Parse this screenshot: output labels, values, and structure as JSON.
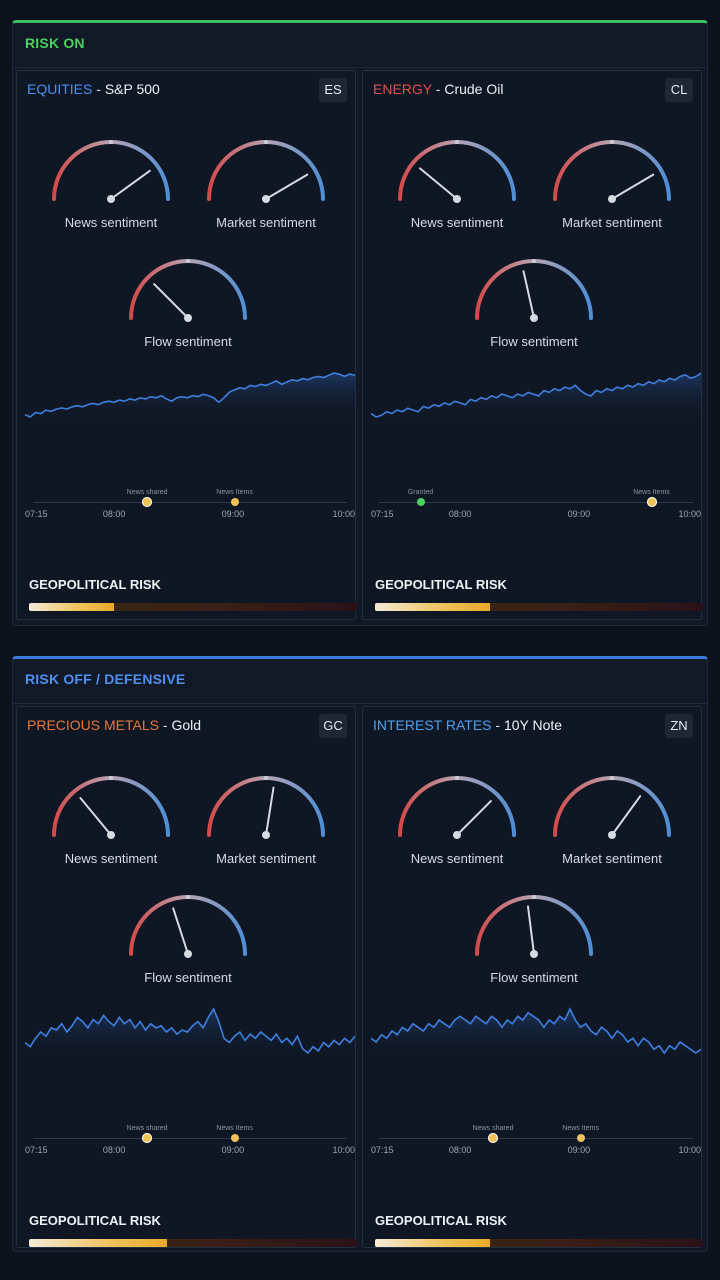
{
  "sections": [
    {
      "title": "RISK ON",
      "cards": [
        {
          "category": "EQUITIES",
          "category_color": "#4f8ff0",
          "asset": "S&P 500",
          "ticker": "ES",
          "gauges": [
            {
              "label": "News sentiment",
              "value": 0.8
            },
            {
              "label": "Market sentiment",
              "value": 0.83
            },
            {
              "label": "Flow sentiment",
              "value": 0.25
            }
          ],
          "series": [
            40,
            38,
            42,
            41,
            44,
            43,
            45,
            46,
            45,
            47,
            48,
            47,
            49,
            50,
            49,
            51,
            52,
            51,
            53,
            52,
            54,
            53,
            55,
            54,
            56,
            55,
            57,
            54,
            52,
            55,
            56,
            55,
            57,
            56,
            58,
            57,
            55,
            51,
            55,
            60,
            62,
            64,
            63,
            66,
            65,
            67,
            66,
            68,
            70,
            67,
            69,
            71,
            70,
            72,
            71,
            73,
            74,
            73,
            75,
            77,
            76,
            74,
            76,
            75
          ],
          "times": [
            "07:15",
            "08:00",
            "09:00",
            "10:00"
          ],
          "events": [
            {
              "label": "News shared",
              "pos": 0.37,
              "color": "#f0c25a",
              "big": true
            },
            {
              "label": "News Items",
              "pos": 0.635,
              "color": "#f0c25a",
              "big": false
            }
          ],
          "geo_label": "GEOPOLITICAL RISK",
          "geo_level": 0.26
        },
        {
          "category": "ENERGY",
          "category_color": "#e05050",
          "asset": "Crude Oil",
          "ticker": "CL",
          "gauges": [
            {
              "label": "News sentiment",
              "value": 0.22
            },
            {
              "label": "Market sentiment",
              "value": 0.83
            },
            {
              "label": "Flow sentiment",
              "value": 0.43
            }
          ],
          "series": [
            42,
            40,
            41,
            43,
            42,
            44,
            43,
            45,
            44,
            43,
            46,
            45,
            47,
            46,
            48,
            47,
            49,
            48,
            47,
            50,
            49,
            51,
            50,
            52,
            51,
            53,
            52,
            51,
            53,
            52,
            54,
            53,
            52,
            55,
            54,
            56,
            55,
            57,
            56,
            58,
            55,
            53,
            52,
            55,
            54,
            56,
            55,
            57,
            56,
            58,
            57,
            59,
            58,
            60,
            59,
            61,
            60,
            62,
            61,
            63,
            64,
            62,
            63,
            65
          ],
          "times": [
            "07:15",
            "08:00",
            "09:00",
            "10:00"
          ],
          "events": [
            {
              "label": "Granted",
              "pos": 0.15,
              "color": "#4cd160",
              "big": false
            },
            {
              "label": "News Items",
              "pos": 0.85,
              "color": "#f0c25a",
              "big": true
            }
          ],
          "geo_label": "GEOPOLITICAL RISK",
          "geo_level": 0.35
        }
      ]
    },
    {
      "title": "RISK OFF / DEFENSIVE",
      "cards": [
        {
          "category": "PRECIOUS METALS",
          "category_color": "#e8773a",
          "asset": "Gold",
          "ticker": "GC",
          "gauges": [
            {
              "label": "News sentiment",
              "value": 0.28
            },
            {
              "label": "Market sentiment",
              "value": 0.55
            },
            {
              "label": "Flow sentiment",
              "value": 0.4
            }
          ],
          "series": [
            50,
            48,
            52,
            55,
            53,
            57,
            56,
            59,
            55,
            58,
            62,
            60,
            57,
            61,
            59,
            63,
            60,
            58,
            62,
            59,
            61,
            57,
            60,
            56,
            59,
            57,
            58,
            55,
            57,
            54,
            56,
            55,
            58,
            60,
            57,
            62,
            66,
            60,
            52,
            50,
            53,
            55,
            51,
            54,
            52,
            55,
            53,
            51,
            54,
            50,
            52,
            49,
            53,
            47,
            45,
            48,
            46,
            50,
            48,
            51,
            49,
            52,
            50,
            53
          ],
          "times": [
            "07:15",
            "08:00",
            "09:00",
            "10:00"
          ],
          "events": [
            {
              "label": "News shared",
              "pos": 0.37,
              "color": "#f0c25a",
              "big": true
            },
            {
              "label": "News Items",
              "pos": 0.635,
              "color": "#f0c25a",
              "big": false
            }
          ],
          "geo_label": "GEOPOLITICAL RISK",
          "geo_level": 0.42
        },
        {
          "category": "INTEREST RATES",
          "category_color": "#4fa0f0",
          "asset": "10Y Note",
          "ticker": "ZN",
          "gauges": [
            {
              "label": "News sentiment",
              "value": 0.75
            },
            {
              "label": "Market sentiment",
              "value": 0.7
            },
            {
              "label": "Flow sentiment",
              "value": 0.46
            }
          ],
          "series": [
            55,
            54,
            56,
            55,
            57,
            56,
            58,
            57,
            59,
            58,
            57,
            59,
            58,
            60,
            59,
            58,
            60,
            61,
            60,
            59,
            61,
            60,
            59,
            61,
            60,
            58,
            60,
            59,
            61,
            60,
            62,
            61,
            60,
            58,
            60,
            59,
            61,
            60,
            63,
            60,
            58,
            59,
            57,
            56,
            58,
            57,
            55,
            57,
            56,
            54,
            55,
            53,
            55,
            54,
            52,
            53,
            51,
            53,
            52,
            54,
            53,
            52,
            51,
            52
          ],
          "times": [
            "07:15",
            "08:00",
            "09:00",
            "10:00"
          ],
          "events": [
            {
              "label": "News shared",
              "pos": 0.37,
              "color": "#f0c25a",
              "big": true
            },
            {
              "label": "News Items",
              "pos": 0.635,
              "color": "#f0c25a",
              "big": false
            }
          ],
          "geo_label": "GEOPOLITICAL RISK",
          "geo_level": 0.35
        }
      ]
    }
  ],
  "colors": {
    "gauge_low": "#d44a4a",
    "gauge_high": "#4f8fd6",
    "needle": "#d6dbe3",
    "line": "#3f7fe0"
  }
}
